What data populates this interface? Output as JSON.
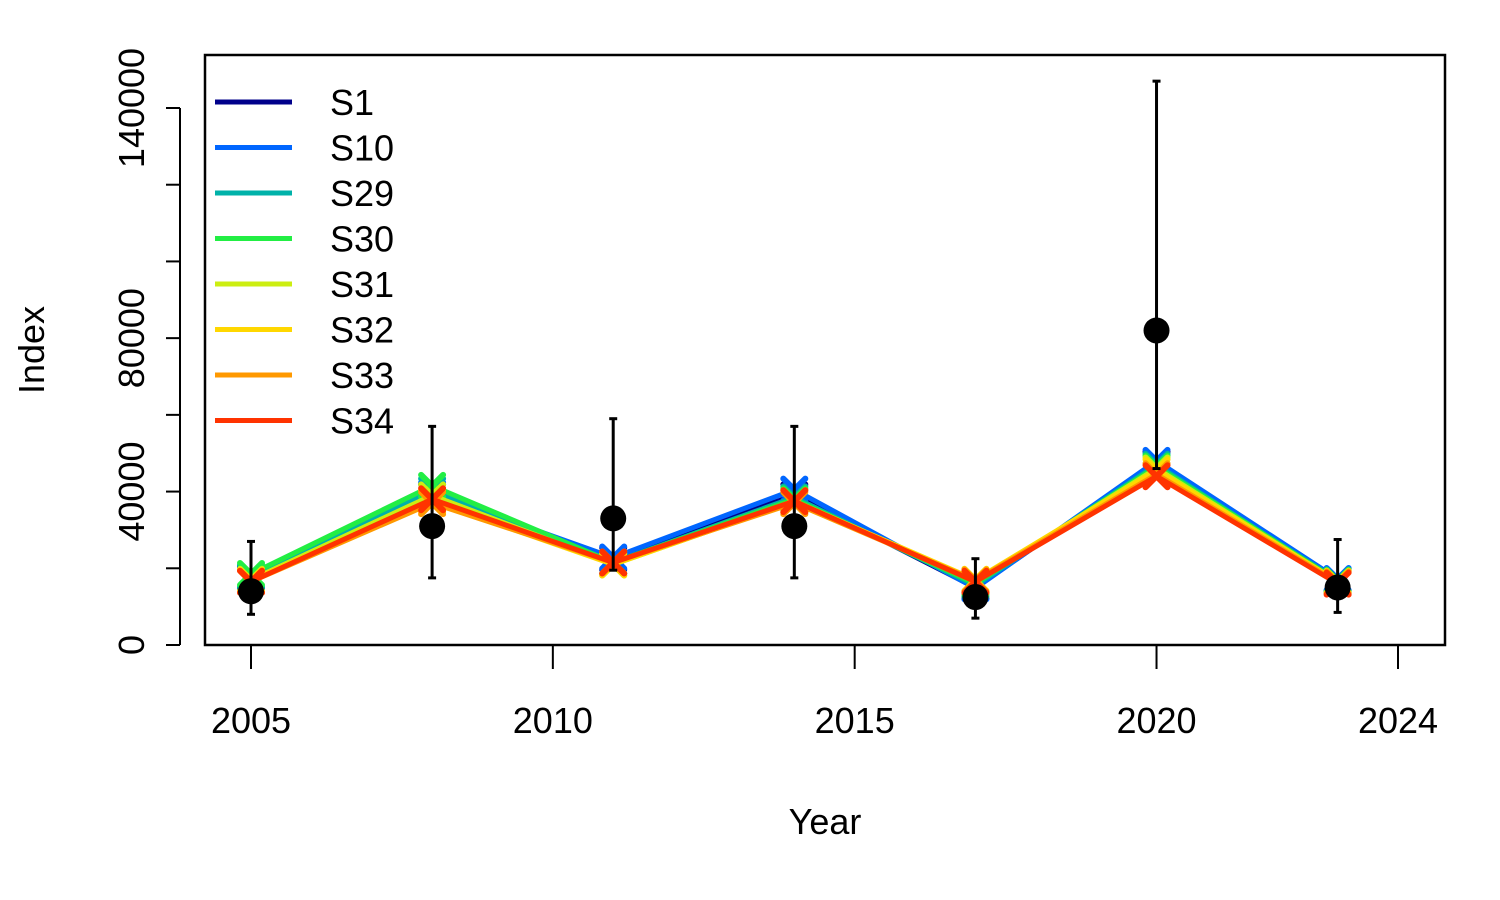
{
  "chart_data": {
    "type": "line",
    "title": "",
    "xlabel": "Year",
    "ylabel": "Index",
    "xlim": [
      2004.25,
      2024.75
    ],
    "ylim": [
      0,
      140000
    ],
    "x_ticks": [
      2005,
      2010,
      2015,
      2020,
      2024
    ],
    "y_ticks": [
      0,
      40000,
      80000,
      140000
    ],
    "y_minor_ticks": [
      20000,
      60000,
      100000,
      120000
    ],
    "grid": false,
    "legend_position": "top-left",
    "x": [
      2005,
      2008,
      2011,
      2014,
      2017,
      2020,
      2023
    ],
    "observed": {
      "values": [
        14000,
        31000,
        33000,
        31000,
        12500,
        82000,
        15000
      ],
      "lower": [
        8000,
        17500,
        19500,
        17500,
        7000,
        46000,
        8500
      ],
      "upper": [
        27000,
        57000,
        59000,
        57000,
        22500,
        147000,
        27500
      ],
      "color": "#000000"
    },
    "series": [
      {
        "name": "S1",
        "color": "#00008B",
        "values": [
          17500,
          39000,
          22500,
          39000,
          15000,
          47500,
          17000
        ]
      },
      {
        "name": "S10",
        "color": "#0066FF",
        "values": [
          17800,
          39500,
          22800,
          40500,
          14800,
          48000,
          17200
        ]
      },
      {
        "name": "S29",
        "color": "#00B2A9",
        "values": [
          18000,
          40500,
          21500,
          38500,
          15500,
          47000,
          16500
        ]
      },
      {
        "name": "S30",
        "color": "#22EE44",
        "values": [
          18500,
          41500,
          21500,
          38000,
          16000,
          46500,
          16800
        ]
      },
      {
        "name": "S31",
        "color": "#CCEE11",
        "values": [
          17000,
          39000,
          21000,
          37500,
          16500,
          46000,
          16500
        ]
      },
      {
        "name": "S32",
        "color": "#FFD700",
        "values": [
          16800,
          37500,
          21000,
          37500,
          17000,
          45500,
          16500
        ]
      },
      {
        "name": "S33",
        "color": "#FF9900",
        "values": [
          16500,
          37000,
          21500,
          37000,
          16800,
          44500,
          16300
        ]
      },
      {
        "name": "S34",
        "color": "#FF3300",
        "values": [
          16500,
          38000,
          21500,
          37500,
          16500,
          44000,
          16000
        ]
      }
    ]
  }
}
